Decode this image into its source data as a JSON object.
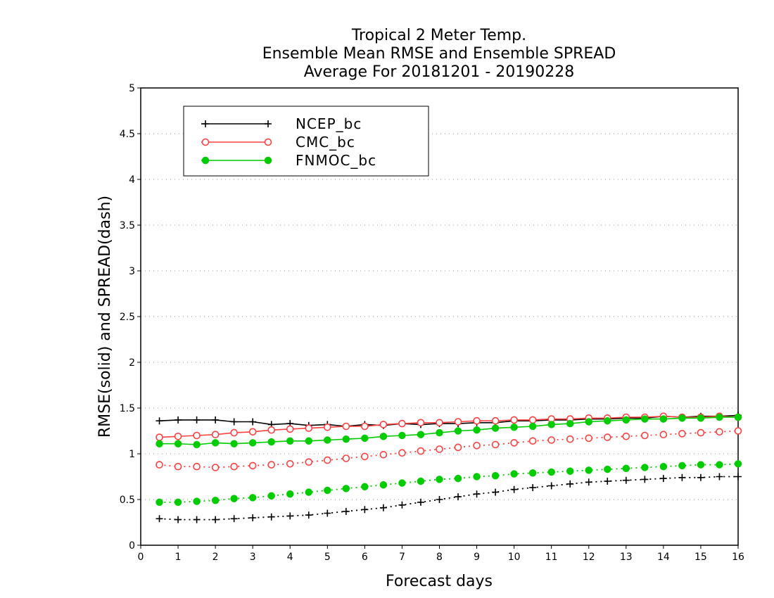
{
  "chart_data": {
    "type": "line",
    "title_lines": [
      "Tropical 2 Meter Temp.",
      "Ensemble Mean RMSE and Ensemble SPREAD",
      "Average For 20181201 - 20190228"
    ],
    "xlabel": "Forecast days",
    "ylabel": "RMSE(solid) and SPREAD(dash)",
    "xlim": [
      0,
      16
    ],
    "ylim": [
      0,
      5
    ],
    "xticks": [
      "0",
      "1",
      "2",
      "3",
      "4",
      "5",
      "6",
      "7",
      "8",
      "9",
      "10",
      "11",
      "12",
      "13",
      "14",
      "15",
      "16"
    ],
    "yticks": [
      "0",
      "0.5",
      "1",
      "1.5",
      "2",
      "2.5",
      "3",
      "3.5",
      "4",
      "4.5",
      "5"
    ],
    "grid": "horizontal dotted",
    "legend_position": "top-left",
    "x": [
      0.5,
      1,
      1.5,
      2,
      2.5,
      3,
      3.5,
      4,
      4.5,
      5,
      5.5,
      6,
      6.5,
      7,
      7.5,
      8,
      8.5,
      9,
      9.5,
      10,
      10.5,
      11,
      11.5,
      12,
      12.5,
      13,
      13.5,
      14,
      14.5,
      15,
      15.5,
      16
    ],
    "series": [
      {
        "name": "NCEP_bc",
        "color": "#000000",
        "marker": "plus",
        "rmse": [
          1.36,
          1.37,
          1.37,
          1.37,
          1.35,
          1.35,
          1.32,
          1.33,
          1.31,
          1.32,
          1.3,
          1.32,
          1.31,
          1.33,
          1.32,
          1.33,
          1.33,
          1.34,
          1.34,
          1.36,
          1.36,
          1.37,
          1.37,
          1.38,
          1.38,
          1.39,
          1.39,
          1.41,
          1.4,
          1.41,
          1.41,
          1.42
        ],
        "spread": [
          0.29,
          0.28,
          0.28,
          0.28,
          0.29,
          0.3,
          0.31,
          0.32,
          0.33,
          0.35,
          0.37,
          0.39,
          0.41,
          0.44,
          0.47,
          0.5,
          0.53,
          0.56,
          0.58,
          0.61,
          0.63,
          0.65,
          0.67,
          0.69,
          0.7,
          0.71,
          0.72,
          0.73,
          0.74,
          0.74,
          0.75,
          0.75
        ]
      },
      {
        "name": "CMC_bc",
        "color": "#ff4040",
        "marker": "open-circle",
        "rmse": [
          1.18,
          1.19,
          1.2,
          1.21,
          1.23,
          1.24,
          1.26,
          1.27,
          1.28,
          1.29,
          1.3,
          1.3,
          1.32,
          1.33,
          1.34,
          1.34,
          1.35,
          1.36,
          1.36,
          1.37,
          1.37,
          1.38,
          1.38,
          1.39,
          1.39,
          1.4,
          1.4,
          1.41,
          1.4,
          1.4,
          1.41,
          1.4
        ],
        "spread": [
          0.88,
          0.86,
          0.86,
          0.85,
          0.86,
          0.87,
          0.88,
          0.89,
          0.91,
          0.93,
          0.95,
          0.97,
          0.99,
          1.01,
          1.03,
          1.05,
          1.07,
          1.09,
          1.1,
          1.12,
          1.14,
          1.15,
          1.16,
          1.17,
          1.18,
          1.19,
          1.2,
          1.21,
          1.22,
          1.23,
          1.24,
          1.25
        ]
      },
      {
        "name": "FNMOC_bc",
        "color": "#00cc00",
        "marker": "filled-circle",
        "rmse": [
          1.11,
          1.11,
          1.1,
          1.12,
          1.11,
          1.12,
          1.13,
          1.14,
          1.14,
          1.15,
          1.16,
          1.17,
          1.19,
          1.2,
          1.21,
          1.23,
          1.25,
          1.26,
          1.28,
          1.29,
          1.3,
          1.32,
          1.33,
          1.35,
          1.36,
          1.37,
          1.38,
          1.38,
          1.39,
          1.39,
          1.4,
          1.4
        ],
        "spread": [
          0.47,
          0.47,
          0.48,
          0.49,
          0.51,
          0.52,
          0.54,
          0.56,
          0.58,
          0.6,
          0.62,
          0.64,
          0.66,
          0.68,
          0.7,
          0.72,
          0.73,
          0.75,
          0.76,
          0.78,
          0.79,
          0.8,
          0.81,
          0.82,
          0.83,
          0.84,
          0.85,
          0.86,
          0.87,
          0.88,
          0.88,
          0.89
        ]
      }
    ]
  }
}
